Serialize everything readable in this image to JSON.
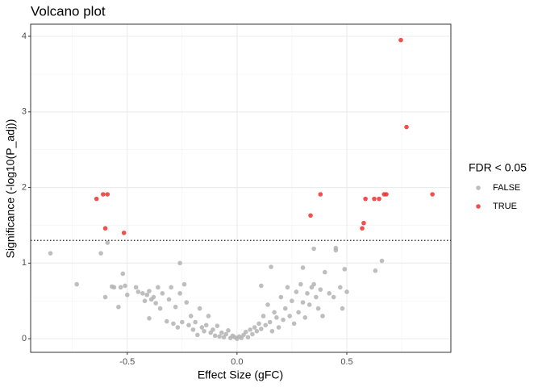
{
  "chart_data": {
    "type": "scatter",
    "title": "Volcano plot",
    "x_label": "Effect Size (gFC)",
    "y_label": "Significance (-log10(P_adj))",
    "xlim": [
      -0.94,
      0.974
    ],
    "ylim": [
      -0.18,
      4.16
    ],
    "xticks": [
      -0.5,
      {
        "value": 0,
        "label": "0.0"
      },
      0.5
    ],
    "yticks": [
      0,
      1,
      2,
      3,
      4
    ],
    "minor_xticks": [
      -0.75,
      -0.25,
      0.25,
      0.75
    ],
    "minor_yticks": [
      0.5,
      1.5,
      2.5,
      3.5
    ],
    "grid": true,
    "hline": 1.3,
    "legend_title": "FDR < 0.05",
    "legend_position": "right",
    "series": [
      {
        "name": "FALSE",
        "color": "#b3b3b3",
        "x": [
          -0.85,
          -0.73,
          -0.62,
          -0.59,
          -0.6,
          -0.57,
          -0.56,
          -0.54,
          -0.53,
          -0.52,
          -0.51,
          -0.5,
          -0.46,
          -0.45,
          -0.43,
          -0.42,
          -0.41,
          -0.4,
          -0.4,
          -0.39,
          -0.38,
          -0.37,
          -0.36,
          -0.35,
          -0.34,
          -0.32,
          -0.31,
          -0.3,
          -0.29,
          -0.28,
          -0.27,
          -0.26,
          -0.26,
          -0.25,
          -0.24,
          -0.23,
          -0.22,
          -0.21,
          -0.2,
          -0.19,
          -0.18,
          -0.17,
          -0.16,
          -0.15,
          -0.14,
          -0.13,
          -0.12,
          -0.11,
          -0.1,
          -0.09,
          -0.08,
          -0.07,
          -0.06,
          -0.05,
          -0.04,
          -0.03,
          -0.02,
          -0.01,
          0,
          0.01,
          0.02,
          0.03,
          0.04,
          0.05,
          0.06,
          0.07,
          0.08,
          0.09,
          0.1,
          0.11,
          0.12,
          0.13,
          0.14,
          0.15,
          0.16,
          0.17,
          0.18,
          0.19,
          0.2,
          0.21,
          0.22,
          0.23,
          0.24,
          0.25,
          0.26,
          0.27,
          0.28,
          0.29,
          0.3,
          0.31,
          0.32,
          0.33,
          0.34,
          0.35,
          0.35,
          0.36,
          0.37,
          0.38,
          0.39,
          0.4,
          0.42,
          0.44,
          0.45,
          0.45,
          0.47,
          0.48,
          0.49,
          0.5,
          0.63,
          0.66,
          0.155,
          0.3,
          0.11
        ],
        "values": [
          1.13,
          0.72,
          1.13,
          1.27,
          0.55,
          0.69,
          0.68,
          0.42,
          0.68,
          0.86,
          0.7,
          0.58,
          0.68,
          0.62,
          0.6,
          0.5,
          0.58,
          0.27,
          0.63,
          0.52,
          0.55,
          0.47,
          0.68,
          0.4,
          0.6,
          0.23,
          0.52,
          0.68,
          0.2,
          0.42,
          0.15,
          1.0,
          0.6,
          0.22,
          0.72,
          0.48,
          0.18,
          0.3,
          0.12,
          0.22,
          0.05,
          0.4,
          0.15,
          0.1,
          0.18,
          0.3,
          0.08,
          0.12,
          0.04,
          0.17,
          0.03,
          0.08,
          0.02,
          0.06,
          0.11,
          0.01,
          0.04,
          0.02,
          0,
          0.03,
          0.01,
          0.05,
          0.09,
          0.02,
          0.12,
          0.06,
          0.15,
          0.1,
          0.2,
          0.13,
          0.3,
          0.18,
          0.45,
          0.22,
          0.1,
          0.35,
          0.28,
          0.15,
          0.55,
          0.25,
          0.4,
          0.68,
          0.3,
          0.5,
          0.2,
          0.62,
          0.35,
          0.72,
          0.48,
          0.28,
          0.6,
          0.45,
          0.68,
          1.19,
          0.72,
          0.55,
          0.4,
          0.65,
          0.3,
          0.88,
          0.6,
          0.55,
          1.2,
          1.17,
          0.68,
          0.4,
          0.92,
          0.62,
          0.9,
          1.03,
          0.95,
          0.94,
          0.7
        ]
      },
      {
        "name": "TRUE",
        "color": "#f03030",
        "x": [
          -0.64,
          -0.61,
          -0.59,
          -0.6,
          -0.515,
          0.335,
          0.38,
          0.57,
          0.577,
          0.585,
          0.625,
          0.647,
          0.67,
          0.68,
          0.746,
          0.772,
          0.89
        ],
        "values": [
          1.85,
          1.91,
          1.91,
          1.46,
          1.4,
          1.63,
          1.91,
          1.46,
          1.53,
          1.85,
          1.85,
          1.85,
          1.91,
          1.91,
          3.95,
          2.8,
          1.91
        ]
      }
    ]
  }
}
